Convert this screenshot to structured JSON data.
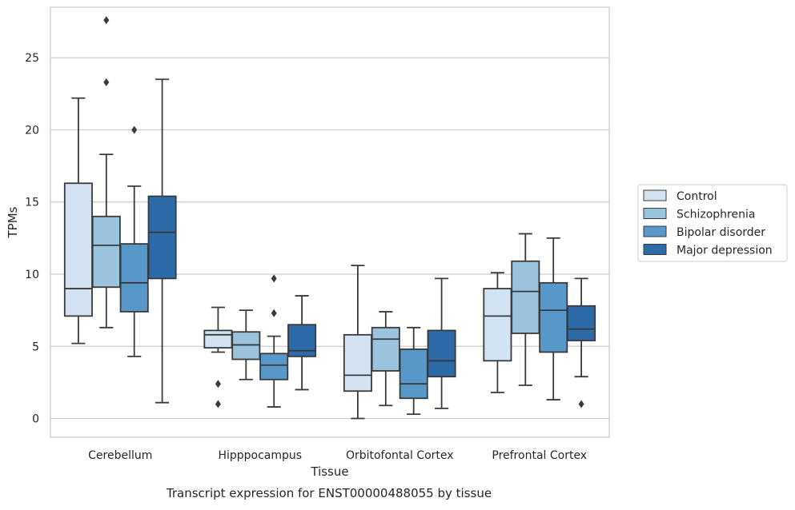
{
  "chart_data": {
    "type": "box",
    "title": "",
    "caption": "Transcript expression for ENST00000488055 by tissue",
    "xlabel": "Tissue",
    "ylabel": "TPMs",
    "ylim": [
      -1.3,
      28.5
    ],
    "yticks": [
      0,
      5,
      10,
      15,
      20,
      25
    ],
    "grid": "horizontal",
    "legend_position": "right",
    "categories": [
      "Cerebellum",
      "Hipppocampus",
      "Orbitofontal Cortex",
      "Prefrontal Cortex"
    ],
    "series": [
      {
        "name": "Control",
        "color": "#d3e3f2",
        "boxes": [
          {
            "whislo": 5.2,
            "q1": 7.1,
            "med": 9.0,
            "q3": 16.3,
            "whishi": 22.2,
            "fliers": []
          },
          {
            "whislo": 4.6,
            "q1": 4.9,
            "med": 5.8,
            "q3": 6.1,
            "whishi": 7.7,
            "fliers": [
              2.4,
              1.0
            ]
          },
          {
            "whislo": 0.0,
            "q1": 1.9,
            "med": 3.0,
            "q3": 5.8,
            "whishi": 10.6,
            "fliers": []
          },
          {
            "whislo": 1.8,
            "q1": 4.0,
            "med": 7.1,
            "q3": 9.0,
            "whishi": 10.1,
            "fliers": []
          }
        ]
      },
      {
        "name": "Schizophrenia",
        "color": "#9ac3de",
        "boxes": [
          {
            "whislo": 6.3,
            "q1": 9.1,
            "med": 12.0,
            "q3": 14.0,
            "whishi": 18.3,
            "fliers": [
              27.6,
              23.3
            ]
          },
          {
            "whislo": 2.7,
            "q1": 4.1,
            "med": 5.1,
            "q3": 6.0,
            "whishi": 7.5,
            "fliers": []
          },
          {
            "whislo": 0.9,
            "q1": 3.3,
            "med": 5.5,
            "q3": 6.3,
            "whishi": 7.4,
            "fliers": []
          },
          {
            "whislo": 2.3,
            "q1": 5.9,
            "med": 8.8,
            "q3": 10.9,
            "whishi": 12.8,
            "fliers": []
          }
        ]
      },
      {
        "name": "Bipolar disorder",
        "color": "#5798c9",
        "boxes": [
          {
            "whislo": 4.3,
            "q1": 7.4,
            "med": 9.4,
            "q3": 12.1,
            "whishi": 16.1,
            "fliers": [
              20.0
            ]
          },
          {
            "whislo": 0.8,
            "q1": 2.7,
            "med": 3.7,
            "q3": 4.5,
            "whishi": 5.7,
            "fliers": [
              9.7,
              7.3
            ]
          },
          {
            "whislo": 0.3,
            "q1": 1.4,
            "med": 2.4,
            "q3": 4.8,
            "whishi": 6.3,
            "fliers": []
          },
          {
            "whislo": 1.3,
            "q1": 4.6,
            "med": 7.5,
            "q3": 9.4,
            "whishi": 12.5,
            "fliers": []
          }
        ]
      },
      {
        "name": "Major depression",
        "color": "#2c6aa8",
        "boxes": [
          {
            "whislo": 1.1,
            "q1": 9.7,
            "med": 12.9,
            "q3": 15.4,
            "whishi": 23.5,
            "fliers": []
          },
          {
            "whislo": 2.0,
            "q1": 4.3,
            "med": 4.7,
            "q3": 6.5,
            "whishi": 8.5,
            "fliers": []
          },
          {
            "whislo": 0.7,
            "q1": 2.9,
            "med": 4.0,
            "q3": 6.1,
            "whishi": 9.7,
            "fliers": []
          },
          {
            "whislo": 2.9,
            "q1": 5.4,
            "med": 6.2,
            "q3": 7.8,
            "whishi": 9.7,
            "fliers": [
              1.0
            ]
          }
        ]
      }
    ]
  }
}
